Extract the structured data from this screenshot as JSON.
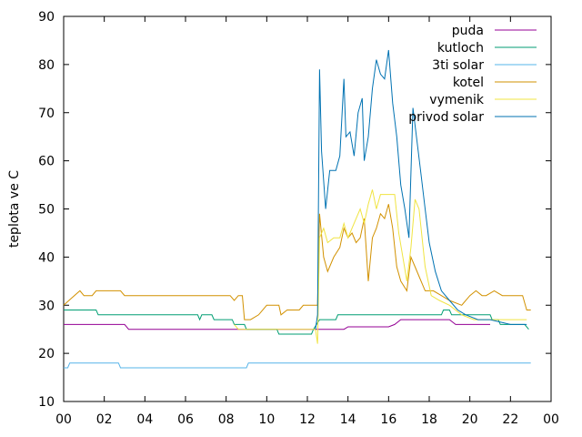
{
  "chart_data": {
    "type": "line",
    "ylabel": "teplota ve C",
    "xlabel": "",
    "title": "",
    "xlim": [
      0,
      24
    ],
    "ylim": [
      10,
      90
    ],
    "x_ticks": [
      "00",
      "02",
      "04",
      "06",
      "08",
      "10",
      "12",
      "14",
      "16",
      "18",
      "20",
      "22",
      "00"
    ],
    "y_ticks": [
      10,
      20,
      30,
      40,
      50,
      60,
      70,
      80,
      90
    ],
    "grid": false,
    "legend_position": "top-right",
    "series": [
      {
        "name": "puda",
        "color": "#940094",
        "points": [
          [
            0,
            26
          ],
          [
            3.0,
            26
          ],
          [
            3.2,
            25
          ],
          [
            12.5,
            25
          ],
          [
            13.8,
            25
          ],
          [
            14.0,
            25.5
          ],
          [
            16.0,
            25.5
          ],
          [
            16.3,
            26
          ],
          [
            16.6,
            27
          ],
          [
            19.0,
            27
          ],
          [
            19.3,
            26
          ],
          [
            21.0,
            26
          ]
        ]
      },
      {
        "name": "kutloch",
        "color": "#009E73",
        "points": [
          [
            0,
            29
          ],
          [
            1.6,
            29
          ],
          [
            1.7,
            28
          ],
          [
            6.6,
            28
          ],
          [
            6.7,
            27
          ],
          [
            6.8,
            28
          ],
          [
            7.3,
            28
          ],
          [
            7.4,
            27
          ],
          [
            8.3,
            27
          ],
          [
            8.4,
            26
          ],
          [
            8.9,
            26
          ],
          [
            9.0,
            25
          ],
          [
            10.5,
            25
          ],
          [
            10.6,
            24
          ],
          [
            12.2,
            24
          ],
          [
            12.3,
            25
          ],
          [
            12.6,
            27
          ],
          [
            13.4,
            27
          ],
          [
            13.5,
            28
          ],
          [
            18.6,
            28
          ],
          [
            18.7,
            29
          ],
          [
            19.0,
            29
          ],
          [
            19.1,
            28
          ],
          [
            21.0,
            28
          ],
          [
            21.1,
            27
          ],
          [
            21.4,
            27
          ],
          [
            21.5,
            26
          ],
          [
            22.7,
            26
          ],
          [
            22.9,
            25
          ]
        ]
      },
      {
        "name": "3ti solar",
        "color": "#56B4E9",
        "points": [
          [
            0,
            17
          ],
          [
            0.2,
            17
          ],
          [
            0.3,
            18
          ],
          [
            2.7,
            18
          ],
          [
            2.8,
            17
          ],
          [
            9.0,
            17
          ],
          [
            9.1,
            18
          ],
          [
            23,
            18
          ]
        ]
      },
      {
        "name": "kotel",
        "color": "#D29100",
        "points": [
          [
            0,
            30
          ],
          [
            0.4,
            31.5
          ],
          [
            0.8,
            33
          ],
          [
            1.0,
            32
          ],
          [
            1.4,
            32
          ],
          [
            1.6,
            33
          ],
          [
            2.8,
            33
          ],
          [
            3.0,
            32
          ],
          [
            8.2,
            32
          ],
          [
            8.4,
            31
          ],
          [
            8.6,
            32
          ],
          [
            8.8,
            32
          ],
          [
            8.9,
            27
          ],
          [
            9.2,
            27
          ],
          [
            9.6,
            28
          ],
          [
            10.0,
            30
          ],
          [
            10.6,
            30
          ],
          [
            10.7,
            28
          ],
          [
            11.0,
            29
          ],
          [
            11.6,
            29
          ],
          [
            11.8,
            30
          ],
          [
            12.4,
            30
          ],
          [
            12.5,
            30
          ],
          [
            12.6,
            49
          ],
          [
            12.8,
            40
          ],
          [
            13.0,
            37
          ],
          [
            13.3,
            40
          ],
          [
            13.6,
            42
          ],
          [
            13.8,
            46
          ],
          [
            14.0,
            44
          ],
          [
            14.2,
            45
          ],
          [
            14.4,
            43
          ],
          [
            14.6,
            44
          ],
          [
            14.8,
            48
          ],
          [
            15.0,
            35
          ],
          [
            15.2,
            44
          ],
          [
            15.4,
            46
          ],
          [
            15.6,
            49
          ],
          [
            15.8,
            48
          ],
          [
            16.0,
            51
          ],
          [
            16.2,
            46
          ],
          [
            16.4,
            38
          ],
          [
            16.6,
            35
          ],
          [
            16.9,
            33
          ],
          [
            17.1,
            40
          ],
          [
            17.3,
            38
          ],
          [
            17.5,
            36
          ],
          [
            17.8,
            33
          ],
          [
            18.2,
            33
          ],
          [
            18.6,
            32
          ],
          [
            19.0,
            31
          ],
          [
            19.6,
            30
          ],
          [
            20.0,
            32
          ],
          [
            20.3,
            33
          ],
          [
            20.6,
            32
          ],
          [
            20.8,
            32
          ],
          [
            21.2,
            33
          ],
          [
            21.6,
            32
          ],
          [
            22.6,
            32
          ],
          [
            22.8,
            29
          ],
          [
            23,
            29
          ]
        ]
      },
      {
        "name": "vymenik",
        "color": "#F0E442",
        "points": [
          [
            8.4,
            26
          ],
          [
            8.6,
            25
          ],
          [
            12.4,
            25
          ],
          [
            12.5,
            22
          ],
          [
            12.6,
            44
          ],
          [
            12.8,
            46
          ],
          [
            13.0,
            43
          ],
          [
            13.3,
            44
          ],
          [
            13.6,
            44
          ],
          [
            13.8,
            47
          ],
          [
            14.0,
            44
          ],
          [
            14.2,
            46
          ],
          [
            14.4,
            48
          ],
          [
            14.6,
            50
          ],
          [
            14.8,
            47
          ],
          [
            15.0,
            51
          ],
          [
            15.2,
            54
          ],
          [
            15.4,
            50
          ],
          [
            15.6,
            53
          ],
          [
            15.8,
            53
          ],
          [
            16.3,
            53
          ],
          [
            16.5,
            45
          ],
          [
            16.7,
            40
          ],
          [
            16.9,
            35
          ],
          [
            17.1,
            42
          ],
          [
            17.3,
            52
          ],
          [
            17.5,
            50
          ],
          [
            17.8,
            38
          ],
          [
            18.1,
            32
          ],
          [
            18.5,
            31
          ],
          [
            19.0,
            30
          ],
          [
            19.6,
            28
          ],
          [
            20.2,
            27
          ],
          [
            21.0,
            27
          ],
          [
            22.0,
            27
          ],
          [
            22.8,
            27
          ]
        ]
      },
      {
        "name": "privod solar",
        "color": "#0072B2",
        "points": [
          [
            12.4,
            25
          ],
          [
            12.5,
            28
          ],
          [
            12.6,
            79
          ],
          [
            12.7,
            62
          ],
          [
            12.9,
            50
          ],
          [
            13.1,
            58
          ],
          [
            13.4,
            58
          ],
          [
            13.6,
            61
          ],
          [
            13.8,
            77
          ],
          [
            13.9,
            65
          ],
          [
            14.1,
            66
          ],
          [
            14.3,
            61
          ],
          [
            14.5,
            70
          ],
          [
            14.7,
            73
          ],
          [
            14.8,
            60
          ],
          [
            15.0,
            65
          ],
          [
            15.2,
            75
          ],
          [
            15.4,
            81
          ],
          [
            15.6,
            78
          ],
          [
            15.8,
            77
          ],
          [
            16.0,
            83
          ],
          [
            16.2,
            72
          ],
          [
            16.4,
            65
          ],
          [
            16.6,
            55
          ],
          [
            16.8,
            50
          ],
          [
            17.0,
            44
          ],
          [
            17.2,
            71
          ],
          [
            17.4,
            64
          ],
          [
            17.6,
            57
          ],
          [
            17.8,
            50
          ],
          [
            18.0,
            43
          ],
          [
            18.3,
            37
          ],
          [
            18.6,
            33
          ],
          [
            19.0,
            31
          ],
          [
            19.4,
            29
          ],
          [
            19.8,
            28
          ],
          [
            20.4,
            27
          ],
          [
            21.0,
            27
          ],
          [
            22.0,
            26
          ],
          [
            22.8,
            26
          ]
        ]
      }
    ]
  }
}
